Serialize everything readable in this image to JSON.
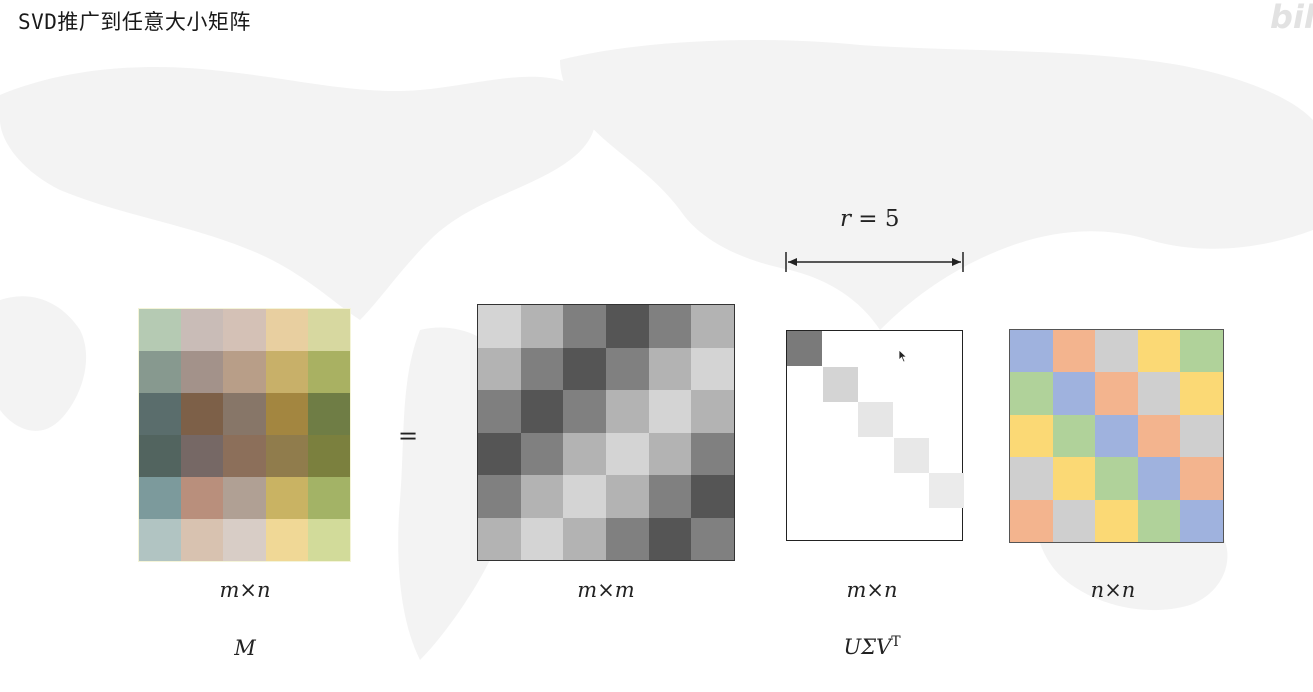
{
  "title": "SVD推广到任意大小矩阵",
  "watermark": "bili",
  "equals_sign": "=",
  "rank_label": {
    "var": "r",
    "eq": " = 5"
  },
  "matrices": {
    "M": {
      "dims": "m×n",
      "name": "M",
      "colors": [
        [
          "#b5cab3",
          "#c9bcb7",
          "#d4c1b6",
          "#e8cfa0",
          "#d7d8a0"
        ],
        [
          "#87998f",
          "#a3928a",
          "#b89e88",
          "#c8b069",
          "#a9b162"
        ],
        [
          "#5a6d6c",
          "#7d6048",
          "#877668",
          "#a38640",
          "#6f7d45"
        ],
        [
          "#52645f",
          "#766865",
          "#8c6f5a",
          "#907c4c",
          "#7b803e"
        ],
        [
          "#7c9a9c",
          "#b98f7c",
          "#b0a094",
          "#c9b363",
          "#a3b366"
        ],
        [
          "#b1c4c2",
          "#d8c2b0",
          "#d8cdc6",
          "#f0d896",
          "#d2db9a"
        ]
      ]
    },
    "U": {
      "dims": "m×m",
      "colors": [
        [
          "#d4d4d4",
          "#b3b3b3",
          "#7f7f7f",
          "#555555",
          "#808080",
          "#b3b3b3"
        ],
        [
          "#b3b3b3",
          "#7f7f7f",
          "#555555",
          "#808080",
          "#b3b3b3",
          "#d4d4d4"
        ],
        [
          "#7f7f7f",
          "#555555",
          "#808080",
          "#b3b3b3",
          "#d4d4d4",
          "#b3b3b3"
        ],
        [
          "#555555",
          "#808080",
          "#b3b3b3",
          "#d4d4d4",
          "#b3b3b3",
          "#808080"
        ],
        [
          "#808080",
          "#b3b3b3",
          "#d4d4d4",
          "#b3b3b3",
          "#808080",
          "#555555"
        ],
        [
          "#b3b3b3",
          "#d4d4d4",
          "#b3b3b3",
          "#808080",
          "#555555",
          "#808080"
        ]
      ]
    },
    "Sigma": {
      "dims": "m×n",
      "formula": "UΣV",
      "formula_sup": "T",
      "diagonal_colors": [
        "#7a7a7a",
        "#d4d4d4",
        "#e6e6e6",
        "#e8e8e8",
        "#ebebeb"
      ]
    },
    "V": {
      "dims": "n×n",
      "colors": [
        [
          "#9fb2de",
          "#f3b48e",
          "#cfcfcf",
          "#fbd975",
          "#b0d29a"
        ],
        [
          "#b0d29a",
          "#9fb2de",
          "#f3b48e",
          "#cfcfcf",
          "#fbd975"
        ],
        [
          "#fbd975",
          "#b0d29a",
          "#9fb2de",
          "#f3b48e",
          "#cfcfcf"
        ],
        [
          "#cfcfcf",
          "#fbd975",
          "#b0d29a",
          "#9fb2de",
          "#f3b48e"
        ],
        [
          "#f3b48e",
          "#cfcfcf",
          "#fbd975",
          "#b0d29a",
          "#9fb2de"
        ]
      ]
    }
  }
}
